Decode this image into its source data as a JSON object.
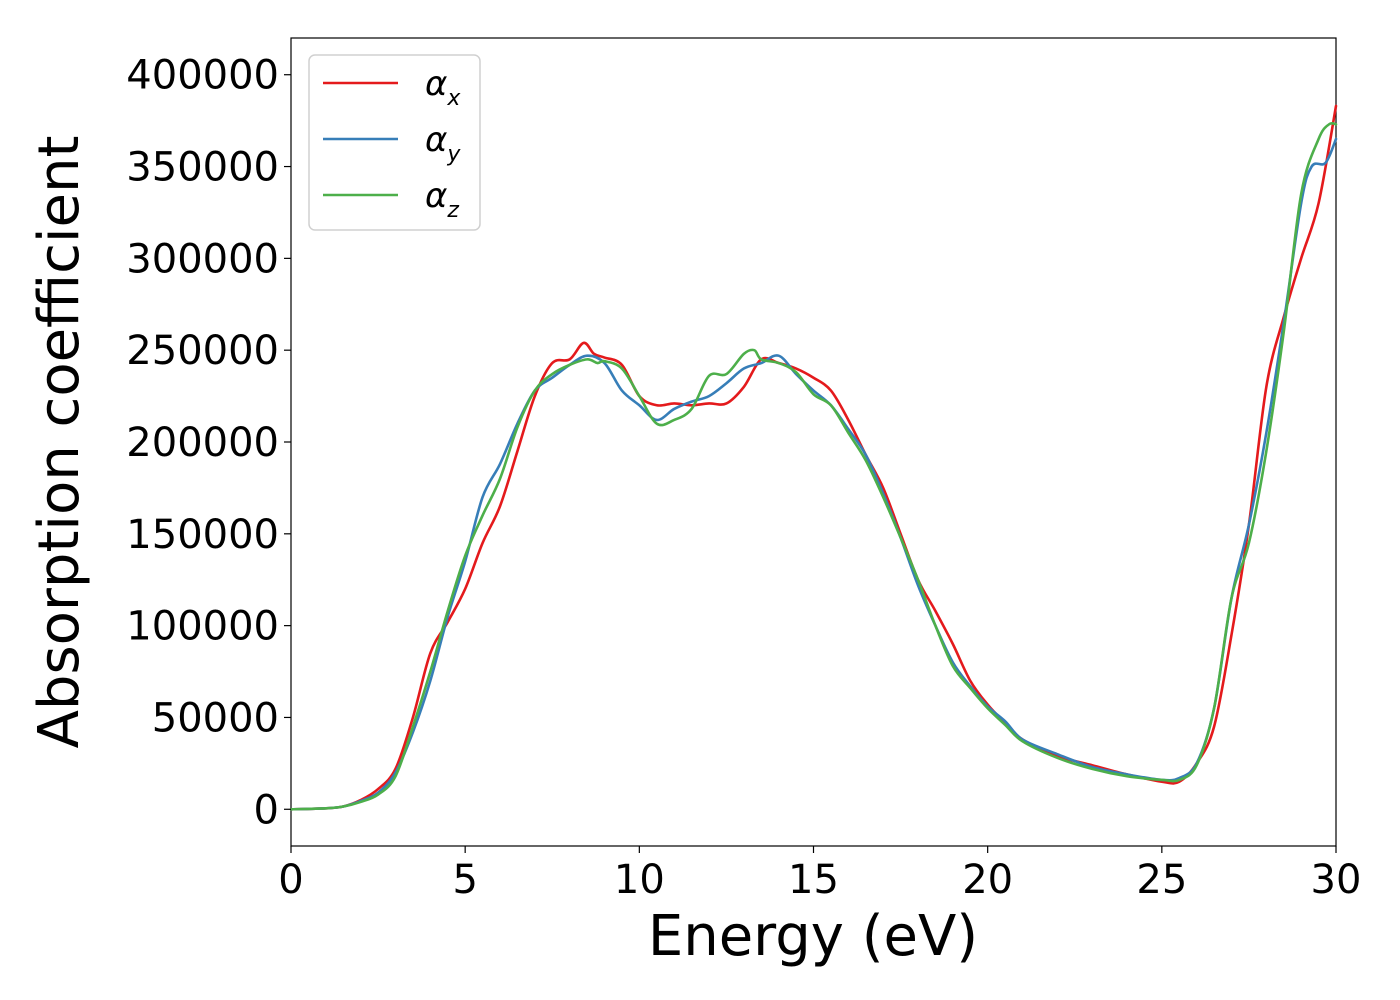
{
  "chart_data": {
    "type": "line",
    "title": "",
    "xlabel": "Energy (eV)",
    "ylabel": "Absorption coefficient",
    "xlim": [
      0,
      30
    ],
    "ylim": [
      -20000,
      420000
    ],
    "xticks": [
      0,
      5,
      10,
      15,
      20,
      25,
      30
    ],
    "xtick_labels": [
      "0",
      "5",
      "10",
      "15",
      "20",
      "25",
      "30"
    ],
    "yticks": [
      0,
      50000,
      100000,
      150000,
      200000,
      250000,
      300000,
      350000,
      400000
    ],
    "ytick_labels": [
      "0",
      "50000",
      "100000",
      "150000",
      "200000",
      "250000",
      "300000",
      "350000",
      "400000"
    ],
    "grid": false,
    "legend_position": "top-left",
    "series": [
      {
        "name": "α",
        "subscript": "x",
        "color": "#e41a1c",
        "points": [
          [
            0,
            0
          ],
          [
            1,
            500
          ],
          [
            1.5,
            1500
          ],
          [
            2,
            5000
          ],
          [
            2.5,
            11000
          ],
          [
            3,
            22000
          ],
          [
            3.5,
            50000
          ],
          [
            4,
            85000
          ],
          [
            4.5,
            102000
          ],
          [
            5,
            120000
          ],
          [
            5.5,
            145000
          ],
          [
            6,
            165000
          ],
          [
            6.5,
            195000
          ],
          [
            7,
            225000
          ],
          [
            7.5,
            243000
          ],
          [
            8,
            245000
          ],
          [
            8.4,
            254000
          ],
          [
            8.7,
            248000
          ],
          [
            9,
            246000
          ],
          [
            9.5,
            242000
          ],
          [
            10,
            225000
          ],
          [
            10.5,
            220000
          ],
          [
            11,
            221000
          ],
          [
            11.5,
            220000
          ],
          [
            12,
            221000
          ],
          [
            12.5,
            221000
          ],
          [
            13,
            230000
          ],
          [
            13.5,
            245000
          ],
          [
            14,
            243000
          ],
          [
            14.5,
            240000
          ],
          [
            15,
            235000
          ],
          [
            15.5,
            228000
          ],
          [
            16,
            212000
          ],
          [
            16.5,
            193000
          ],
          [
            17,
            175000
          ],
          [
            17.5,
            150000
          ],
          [
            18,
            125000
          ],
          [
            18.5,
            108000
          ],
          [
            19,
            90000
          ],
          [
            19.5,
            70000
          ],
          [
            20,
            57000
          ],
          [
            20.5,
            47000
          ],
          [
            21,
            38000
          ],
          [
            22,
            29000
          ],
          [
            23,
            24000
          ],
          [
            24,
            19000
          ],
          [
            25,
            15000
          ],
          [
            25.5,
            15000
          ],
          [
            26,
            25000
          ],
          [
            26.5,
            45000
          ],
          [
            27,
            95000
          ],
          [
            27.5,
            155000
          ],
          [
            28,
            230000
          ],
          [
            28.5,
            268000
          ],
          [
            29,
            300000
          ],
          [
            29.5,
            330000
          ],
          [
            30,
            383000
          ]
        ]
      },
      {
        "name": "α",
        "subscript": "y",
        "color": "#377eb8",
        "points": [
          [
            0,
            0
          ],
          [
            1,
            500
          ],
          [
            1.5,
            1500
          ],
          [
            2,
            4500
          ],
          [
            2.5,
            9000
          ],
          [
            3,
            20000
          ],
          [
            3.5,
            42000
          ],
          [
            4,
            70000
          ],
          [
            4.5,
            105000
          ],
          [
            5,
            135000
          ],
          [
            5.5,
            170000
          ],
          [
            6,
            188000
          ],
          [
            6.5,
            210000
          ],
          [
            7,
            228000
          ],
          [
            7.5,
            235000
          ],
          [
            8,
            242000
          ],
          [
            8.5,
            247000
          ],
          [
            9,
            243000
          ],
          [
            9.5,
            228000
          ],
          [
            10,
            220000
          ],
          [
            10.5,
            212000
          ],
          [
            11,
            218000
          ],
          [
            11.5,
            222000
          ],
          [
            12,
            225000
          ],
          [
            12.5,
            232000
          ],
          [
            13,
            240000
          ],
          [
            13.5,
            243000
          ],
          [
            14,
            247000
          ],
          [
            14.5,
            237000
          ],
          [
            15,
            228000
          ],
          [
            15.5,
            220000
          ],
          [
            16,
            207000
          ],
          [
            16.5,
            193000
          ],
          [
            17,
            172000
          ],
          [
            17.5,
            148000
          ],
          [
            18,
            122000
          ],
          [
            18.5,
            100000
          ],
          [
            19,
            80000
          ],
          [
            19.5,
            67000
          ],
          [
            20,
            56000
          ],
          [
            20.5,
            48000
          ],
          [
            21,
            38000
          ],
          [
            22,
            30000
          ],
          [
            23,
            23000
          ],
          [
            24,
            19000
          ],
          [
            25,
            16000
          ],
          [
            25.5,
            17000
          ],
          [
            26,
            25000
          ],
          [
            26.5,
            55000
          ],
          [
            27,
            115000
          ],
          [
            27.5,
            155000
          ],
          [
            28,
            205000
          ],
          [
            28.5,
            265000
          ],
          [
            29,
            330000
          ],
          [
            29.3,
            350000
          ],
          [
            29.7,
            352000
          ],
          [
            30,
            365000
          ]
        ]
      },
      {
        "name": "α",
        "subscript": "z",
        "color": "#4daf4a",
        "points": [
          [
            0,
            0
          ],
          [
            1,
            500
          ],
          [
            1.5,
            1500
          ],
          [
            2,
            4000
          ],
          [
            2.5,
            8000
          ],
          [
            3,
            18000
          ],
          [
            3.5,
            45000
          ],
          [
            4,
            75000
          ],
          [
            4.5,
            108000
          ],
          [
            5,
            138000
          ],
          [
            5.5,
            160000
          ],
          [
            6,
            180000
          ],
          [
            6.5,
            208000
          ],
          [
            7,
            228000
          ],
          [
            7.5,
            237000
          ],
          [
            8,
            242000
          ],
          [
            8.5,
            245000
          ],
          [
            8.8,
            243000
          ],
          [
            9,
            244000
          ],
          [
            9.5,
            240000
          ],
          [
            10,
            225000
          ],
          [
            10.5,
            210000
          ],
          [
            11,
            212000
          ],
          [
            11.5,
            218000
          ],
          [
            12,
            236000
          ],
          [
            12.5,
            237000
          ],
          [
            13,
            248000
          ],
          [
            13.3,
            250000
          ],
          [
            13.5,
            245000
          ],
          [
            14,
            243000
          ],
          [
            14.5,
            238000
          ],
          [
            15,
            226000
          ],
          [
            15.5,
            220000
          ],
          [
            16,
            205000
          ],
          [
            16.5,
            190000
          ],
          [
            17,
            170000
          ],
          [
            17.5,
            148000
          ],
          [
            18,
            125000
          ],
          [
            18.5,
            100000
          ],
          [
            19,
            78000
          ],
          [
            19.5,
            66000
          ],
          [
            20,
            55000
          ],
          [
            20.5,
            46000
          ],
          [
            21,
            37000
          ],
          [
            22,
            28000
          ],
          [
            23,
            22000
          ],
          [
            24,
            18000
          ],
          [
            25,
            16000
          ],
          [
            25.5,
            16000
          ],
          [
            26,
            24000
          ],
          [
            26.5,
            55000
          ],
          [
            27,
            115000
          ],
          [
            27.5,
            145000
          ],
          [
            28,
            195000
          ],
          [
            28.5,
            260000
          ],
          [
            29,
            335000
          ],
          [
            29.5,
            365000
          ],
          [
            29.8,
            373000
          ],
          [
            30,
            373000
          ]
        ]
      }
    ]
  }
}
